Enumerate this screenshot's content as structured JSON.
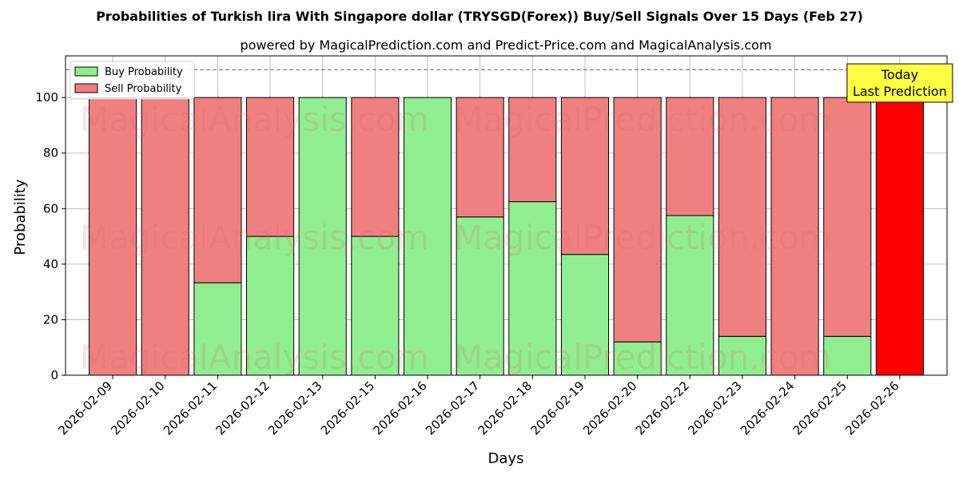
{
  "chart_data": {
    "type": "bar",
    "stacked": true,
    "title": "Probabilities of Turkish lira With Singapore dollar (TRYSGD(Forex)) Buy/Sell Signals Over 15 Days (Feb 27)",
    "subtitle": "powered by MagicalPrediction.com and Predict-Price.com and MagicalAnalysis.com",
    "xlabel": "Days",
    "ylabel": "Probability",
    "ylim": [
      0,
      115
    ],
    "yticks": [
      0,
      20,
      40,
      60,
      80,
      100
    ],
    "grid": true,
    "reference_line": 110,
    "categories": [
      "2026-02-09",
      "2026-02-10",
      "2026-02-11",
      "2026-02-12",
      "2026-02-13",
      "2026-02-15",
      "2026-02-16",
      "2026-02-17",
      "2026-02-18",
      "2026-02-19",
      "2026-02-20",
      "2026-02-22",
      "2026-02-23",
      "2026-02-24",
      "2026-02-25",
      "2026-02-26"
    ],
    "series": [
      {
        "name": "Buy Probability",
        "color": "#90ee90",
        "values": [
          0,
          0,
          33.3,
          50,
          100,
          50,
          100,
          57,
          62.5,
          43.5,
          12,
          57.5,
          14,
          0,
          14,
          0
        ]
      },
      {
        "name": "Sell Probability",
        "color": "#f08080",
        "values": [
          100,
          100,
          66.7,
          50,
          0,
          50,
          0,
          43,
          37.5,
          56.5,
          88,
          42.5,
          86,
          100,
          86,
          100
        ]
      }
    ],
    "highlight": {
      "index": 15,
      "color": "#ff0000"
    },
    "annotation": {
      "lines": [
        "Today",
        "Last Prediction"
      ],
      "background": "#ffff44"
    },
    "legend_position": "upper-left",
    "watermarks": [
      "MagicalAnalysis.com",
      "MagicalPrediction.com"
    ]
  }
}
